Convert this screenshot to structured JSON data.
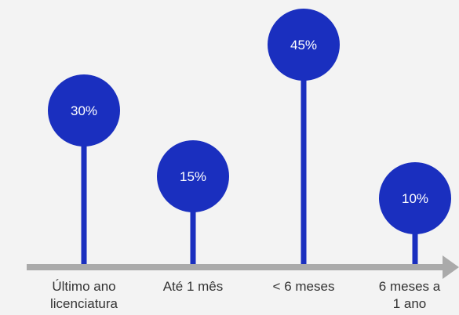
{
  "chart_data": {
    "type": "lollipop",
    "title": "",
    "xlabel": "",
    "ylabel": "",
    "grid": false,
    "legend": "none",
    "categories": [
      [
        "Último ano",
        "licenciatura"
      ],
      [
        "Até 1 mês"
      ],
      [
        "< 6 meses"
      ],
      [
        "6 meses a",
        "1 ano"
      ]
    ],
    "values": [
      30,
      15,
      45,
      10
    ],
    "value_labels": [
      "30%",
      "15%",
      "45%",
      "10%"
    ],
    "unit": "%",
    "colors": {
      "bubble": "#1a2fbf",
      "stem": "#1a2fbf",
      "axis": "#aaaaaa",
      "label": "#333333",
      "background": "#f3f3f3"
    }
  }
}
